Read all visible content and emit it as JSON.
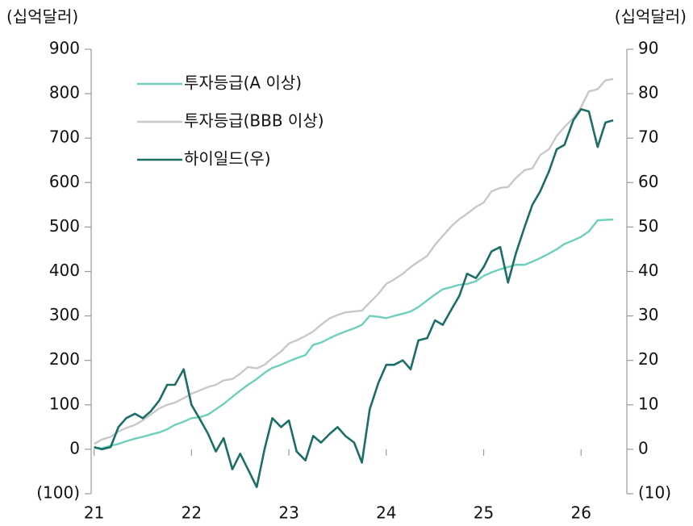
{
  "chart_data": {
    "type": "line",
    "ylabel": "(십억달러)",
    "y2label": "(십억달러)",
    "x": [
      21,
      21.08,
      21.17,
      21.25,
      21.33,
      21.42,
      21.5,
      21.58,
      21.67,
      21.75,
      21.83,
      21.92,
      22,
      22.08,
      22.17,
      22.25,
      22.33,
      22.42,
      22.5,
      22.58,
      22.67,
      22.75,
      22.83,
      22.92,
      23,
      23.08,
      23.17,
      23.25,
      23.33,
      23.42,
      23.5,
      23.58,
      23.67,
      23.75,
      23.83,
      23.92,
      24,
      24.08,
      24.17,
      24.25,
      24.33,
      24.42,
      24.5,
      24.58,
      24.67,
      24.75,
      24.83,
      24.92,
      25,
      25.08,
      25.17,
      25.25,
      25.33,
      25.42,
      25.5,
      25.58,
      25.67,
      25.75,
      25.83,
      25.92,
      26,
      26.08,
      26.17,
      26.25,
      26.33
    ],
    "xlim": [
      20.97,
      26.47
    ],
    "xticks": [
      21,
      22,
      23,
      24,
      25,
      26
    ],
    "ylim": [
      -100,
      900
    ],
    "yticks": [
      {
        "value": -100,
        "label": "(100)"
      },
      0,
      100,
      200,
      300,
      400,
      500,
      600,
      700,
      800,
      900
    ],
    "y2lim": [
      -10,
      90
    ],
    "y2ticks": [
      {
        "value": -10,
        "label": "(10)"
      },
      0,
      10,
      20,
      30,
      40,
      50,
      60,
      70,
      80,
      90
    ],
    "legend": "upper left",
    "series": [
      {
        "name": "투자등급(A 이상)",
        "color": "#6fcfbd",
        "values": [
          3,
          2,
          8,
          12,
          18,
          24,
          28,
          33,
          38,
          45,
          55,
          62,
          70,
          72,
          78,
          90,
          102,
          118,
          132,
          145,
          158,
          172,
          183,
          190,
          198,
          205,
          212,
          235,
          240,
          250,
          258,
          265,
          272,
          280,
          300,
          298,
          295,
          300,
          305,
          310,
          320,
          335,
          348,
          360,
          365,
          370,
          372,
          378,
          390,
          398,
          405,
          410,
          415,
          415,
          422,
          430,
          440,
          450,
          462,
          470,
          478,
          490,
          515,
          516,
          517
        ]
      },
      {
        "name": "투자등급(BBB 이상)",
        "color": "#c8c8c8",
        "values": [
          12,
          22,
          28,
          40,
          48,
          55,
          65,
          78,
          92,
          100,
          105,
          115,
          125,
          132,
          140,
          145,
          155,
          158,
          170,
          185,
          182,
          190,
          205,
          220,
          238,
          245,
          255,
          265,
          280,
          295,
          302,
          308,
          310,
          312,
          330,
          350,
          372,
          382,
          395,
          410,
          422,
          435,
          460,
          480,
          502,
          518,
          530,
          545,
          555,
          580,
          588,
          590,
          610,
          628,
          632,
          662,
          675,
          705,
          725,
          745,
          770,
          805,
          810,
          830,
          833
        ]
      },
      {
        "name": "하이일드(우)",
        "color": "#1b6e65",
        "axis": "y2",
        "values": [
          0.5,
          0,
          0.5,
          5,
          7,
          8,
          7,
          8.5,
          11,
          14.5,
          14.5,
          18,
          10,
          7,
          3.5,
          -0.5,
          2.5,
          -4.5,
          -1,
          -4.5,
          -8.5,
          0,
          7,
          5,
          6.5,
          -0.5,
          -2.5,
          3,
          1.5,
          3.5,
          5,
          3,
          1.5,
          -3,
          9,
          15,
          19,
          19,
          20,
          18,
          24.5,
          25,
          29,
          28,
          31.5,
          34.5,
          39.5,
          38.5,
          41,
          44.5,
          45.5,
          37.5,
          44,
          50,
          55,
          58,
          62.5,
          67.5,
          68.5,
          74,
          76.5,
          76,
          68,
          73.5,
          74
        ]
      }
    ]
  }
}
